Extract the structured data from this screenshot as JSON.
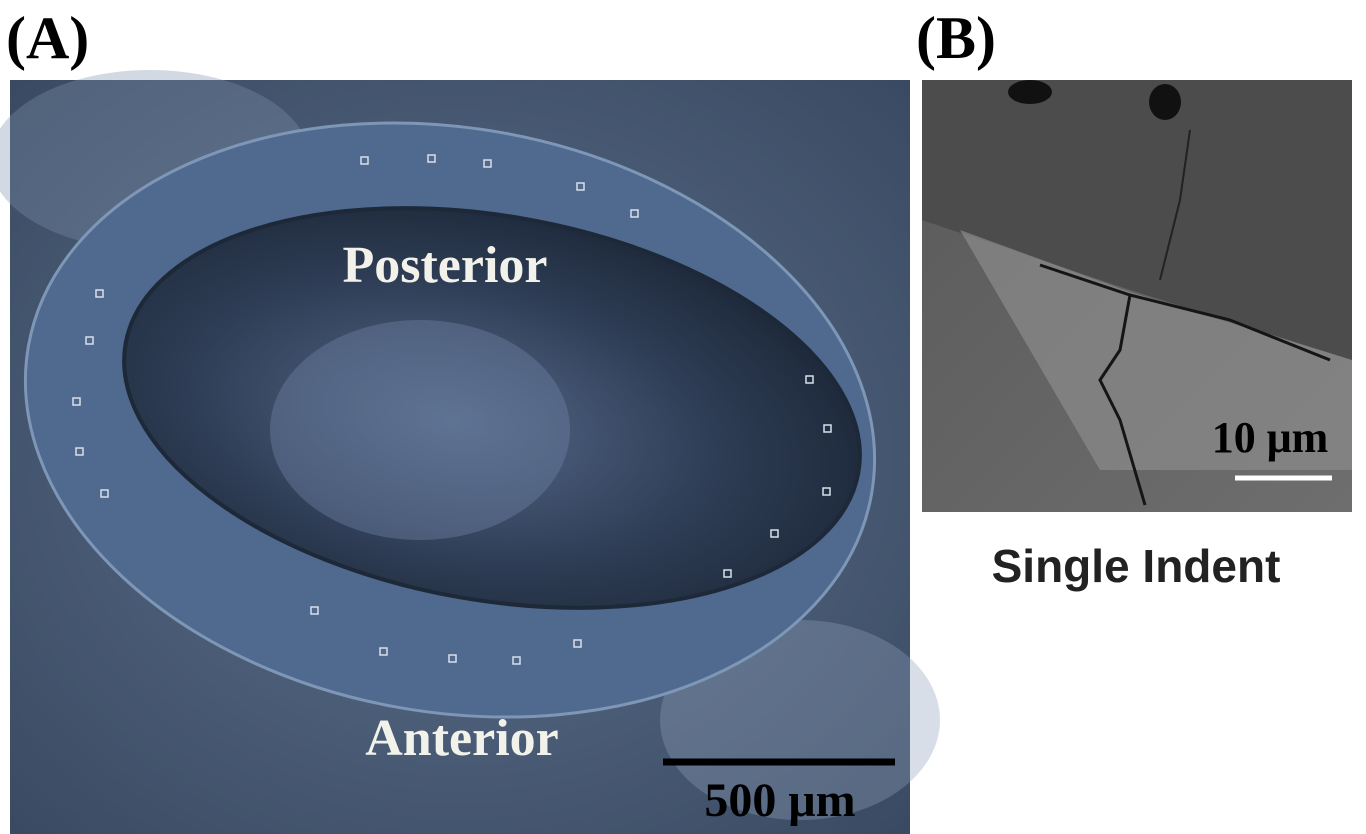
{
  "panels": [
    {
      "label": "(A)",
      "annotations": [
        "Posterior",
        "Anterior"
      ],
      "scale_bar": "500 μm"
    },
    {
      "label": "(B)",
      "scale_bar": "10 μm",
      "caption": "Single Indent"
    }
  ]
}
